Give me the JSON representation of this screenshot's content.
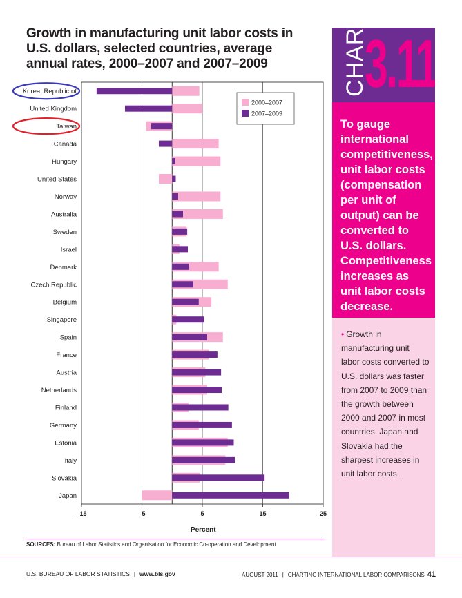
{
  "header": {
    "title": "Growth in manufacturing unit labor costs in U.S. dollars, selected countries, average annual rates, 2000–2007 and 2007–2009"
  },
  "badge": {
    "word": "CHART",
    "number": "3.11"
  },
  "sidebar": {
    "highlight": "To gauge international competitiveness, unit labor costs (compensation per unit of output) can be converted to U.S. dollars. Competitiveness increases as unit labor costs decrease.",
    "bullet": "Growth in manufacturing unit labor costs converted to U.S. dollars was faster from 2007 to 2009 than the growth between 2000 and 2007 in most countries. Japan and Slovakia had the sharpest increases in unit labor costs."
  },
  "sources": {
    "label": "SOURCES:",
    "text": "Bureau of Labor Statistics and Organisation for Economic Co-operation and Development"
  },
  "footer": {
    "agency": "U.S. BUREAU OF LABOR STATISTICS",
    "site": "www.bls.gov",
    "date": "AUGUST 2011",
    "publication": "CHARTING INTERNATIONAL LABOR COMPARISONS",
    "page": "41"
  },
  "colors": {
    "series_2000_2007": "#f7aed0",
    "series_2007_2009": "#6c2c91",
    "accent_magenta": "#ec008c",
    "circle_blue": "#3a3ab8",
    "circle_red": "#e0202a"
  },
  "chart_data": {
    "type": "bar",
    "orientation": "horizontal",
    "title": "Growth in manufacturing unit labor costs in U.S. dollars, selected countries, average annual rates, 2000–2007 and 2007–2009",
    "xlabel": "Percent",
    "ylabel": "",
    "xlim": [
      -15,
      25
    ],
    "xticks": [
      -15,
      -5,
      5,
      15,
      25
    ],
    "xtick_labels": [
      "–15",
      "–5",
      "5",
      "15",
      "25"
    ],
    "gridlines_at": [
      -5,
      5,
      15
    ],
    "legend_position": "top-right",
    "categories": [
      "Korea, Republic of",
      "United Kingdom",
      "Taiwan",
      "Canada",
      "Hungary",
      "United States",
      "Norway",
      "Australia",
      "Sweden",
      "Israel",
      "Denmark",
      "Czech Republic",
      "Belgium",
      "Singapore",
      "Spain",
      "France",
      "Austria",
      "Netherlands",
      "Finland",
      "Germany",
      "Estonia",
      "Italy",
      "Slovakia",
      "Japan"
    ],
    "series": [
      {
        "name": "2000–2007",
        "values": [
          4.5,
          5.0,
          -4.3,
          7.7,
          8.0,
          -2.2,
          8.0,
          8.4,
          2.4,
          1.2,
          7.7,
          9.2,
          6.5,
          0.7,
          8.4,
          6.1,
          5.5,
          5.8,
          2.7,
          4.4,
          9.2,
          8.8,
          4.6,
          -5.0
        ]
      },
      {
        "name": "2007–2009",
        "values": [
          -12.5,
          -7.8,
          -3.5,
          -2.2,
          0.5,
          0.6,
          1.0,
          1.8,
          2.5,
          2.6,
          2.8,
          3.5,
          4.4,
          5.3,
          5.8,
          7.5,
          8.1,
          8.2,
          9.3,
          9.9,
          10.2,
          10.4,
          15.3,
          19.4
        ]
      }
    ],
    "circled_categories": [
      {
        "category": "Korea, Republic of",
        "color": "blue"
      },
      {
        "category": "Taiwan",
        "color": "red"
      }
    ]
  }
}
